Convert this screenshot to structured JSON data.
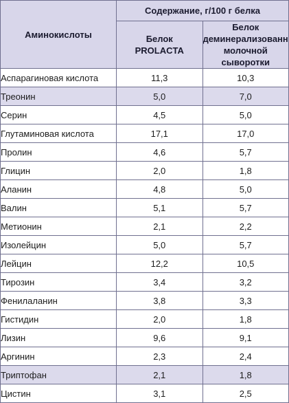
{
  "header": {
    "col_name": "Аминокислоты",
    "group": "Содержание, г/100 г белка",
    "col_a_line1": "Белок",
    "col_a_line2": "PROLACTA",
    "col_b_line1": "Белок",
    "col_b_line2": "деминерализованной",
    "col_b_line3": "молочной сыворотки"
  },
  "rows": [
    {
      "name": "Аспарагиновая кислота",
      "a": "11,3",
      "b": "10,3"
    },
    {
      "name": "Треонин",
      "a": "5,0",
      "b": "7,0"
    },
    {
      "name": "Серин",
      "a": "4,5",
      "b": "5,0"
    },
    {
      "name": "Глутаминовая кислота",
      "a": "17,1",
      "b": "17,0"
    },
    {
      "name": "Пролин",
      "a": "4,6",
      "b": "5,7"
    },
    {
      "name": "Глицин",
      "a": "2,0",
      "b": "1,8"
    },
    {
      "name": "Аланин",
      "a": "4,8",
      "b": "5,0"
    },
    {
      "name": "Валин",
      "a": "5,1",
      "b": "5,7"
    },
    {
      "name": "Метионин",
      "a": "2,1",
      "b": "2,2"
    },
    {
      "name": "Изолейцин",
      "a": "5,0",
      "b": "5,7"
    },
    {
      "name": "Лейцин",
      "a": "12,2",
      "b": "10,5"
    },
    {
      "name": "Тирозин",
      "a": "3,4",
      "b": "3,2"
    },
    {
      "name": "Фенилаланин",
      "a": "3,8",
      "b": "3,3"
    },
    {
      "name": "Гистидин",
      "a": "2,0",
      "b": "1,8"
    },
    {
      "name": "Лизин",
      "a": "9,6",
      "b": "9,1"
    },
    {
      "name": "Аргинин",
      "a": "2,3",
      "b": "2,4"
    },
    {
      "name": "Триптофан",
      "a": "2,1",
      "b": "1,8"
    },
    {
      "name": "Цистин",
      "a": "3,1",
      "b": "2,5"
    }
  ],
  "colors": {
    "header_bg": "#d8d6ea",
    "highlight_bg": "#dcdaec",
    "border": "#6f6f8f"
  }
}
